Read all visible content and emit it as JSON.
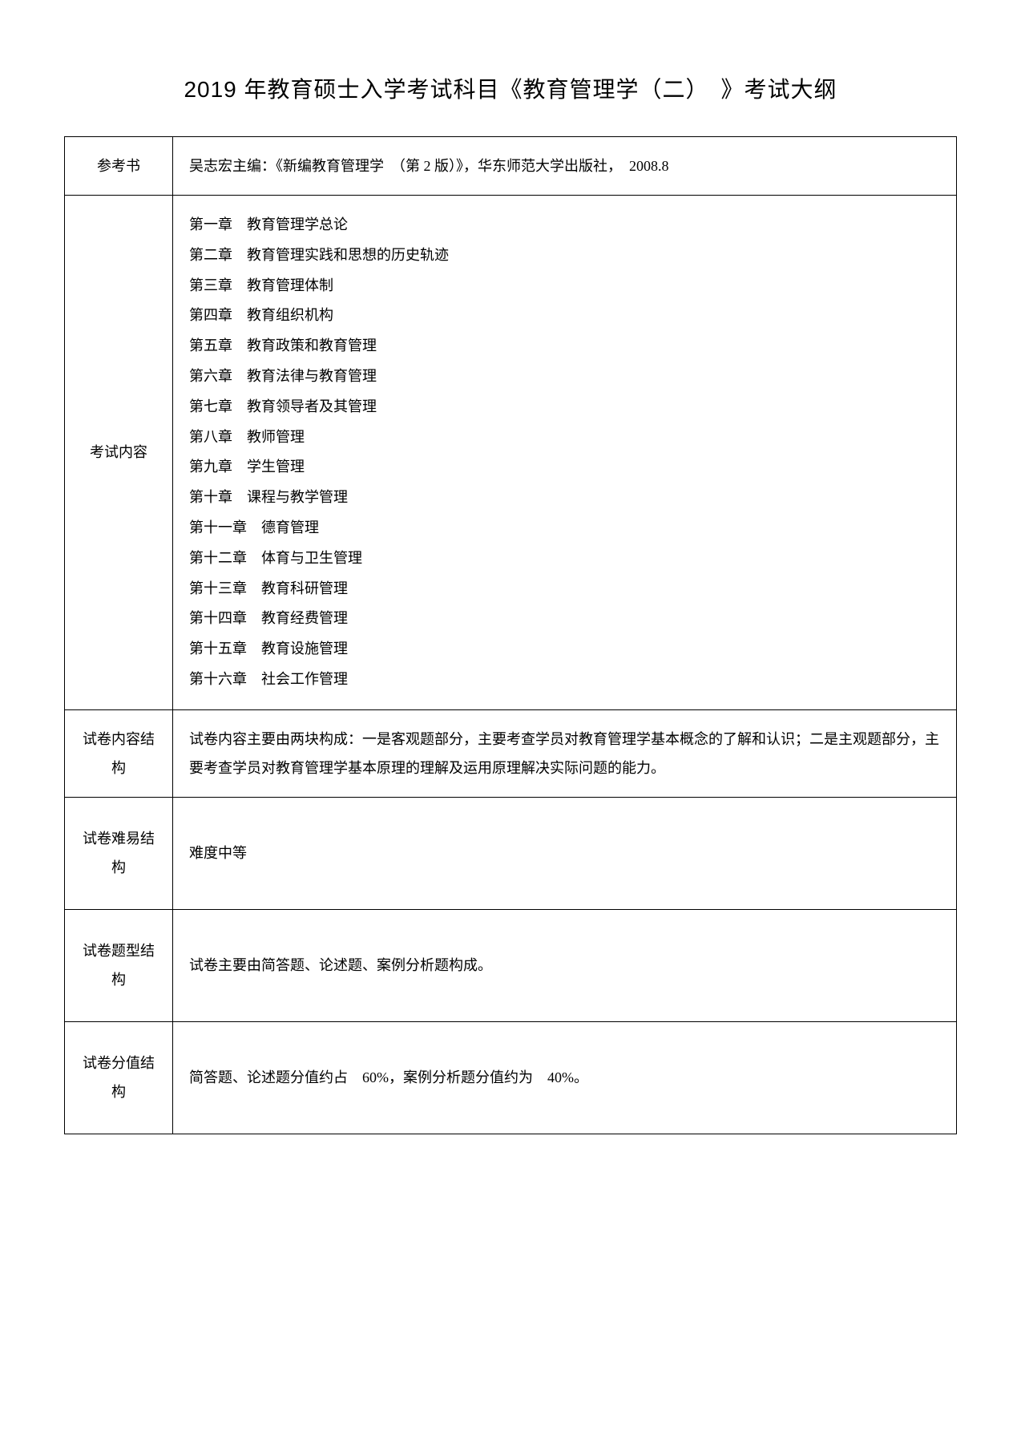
{
  "title": "2019 年教育硕士入学考试科目《教育管理学（二）　》考试大纲",
  "rows": {
    "reference_book": {
      "label": "参考书",
      "content": "吴志宏主编：《新编教育管理学　（第 2 版）》，华东师范大学出版社，　2008.8"
    },
    "exam_content": {
      "label": "考试内容",
      "chapters": [
        "第一章　教育管理学总论",
        "第二章　教育管理实践和思想的历史轨迹",
        "第三章　教育管理体制",
        "第四章　教育组织机构",
        "第五章　教育政策和教育管理",
        "第六章　教育法律与教育管理",
        "第七章　教育领导者及其管理",
        "第八章　教师管理",
        "第九章　学生管理",
        "第十章　课程与教学管理",
        "第十一章　德育管理",
        "第十二章　体育与卫生管理",
        "第十三章　教育科研管理",
        "第十四章　教育经费管理",
        "第十五章　教育设施管理",
        "第十六章　社会工作管理"
      ]
    },
    "content_structure": {
      "label": "试卷内容结构",
      "content": "试卷内容主要由两块构成：一是客观题部分，主要考查学员对教育管理学基本概念的了解和认识；二是主观题部分，主要考查学员对教育管理学基本原理的理解及运用原理解决实际问题的能力。"
    },
    "difficulty_structure": {
      "label": "试卷难易结构",
      "content": "难度中等"
    },
    "question_type_structure": {
      "label": "试卷题型结构",
      "content": "试卷主要由简答题、论述题、案例分析题构成。"
    },
    "score_structure": {
      "label": "试卷分值结构",
      "content": "简答题、论述题分值约占　60%，案例分析题分值约为　40%。"
    }
  }
}
